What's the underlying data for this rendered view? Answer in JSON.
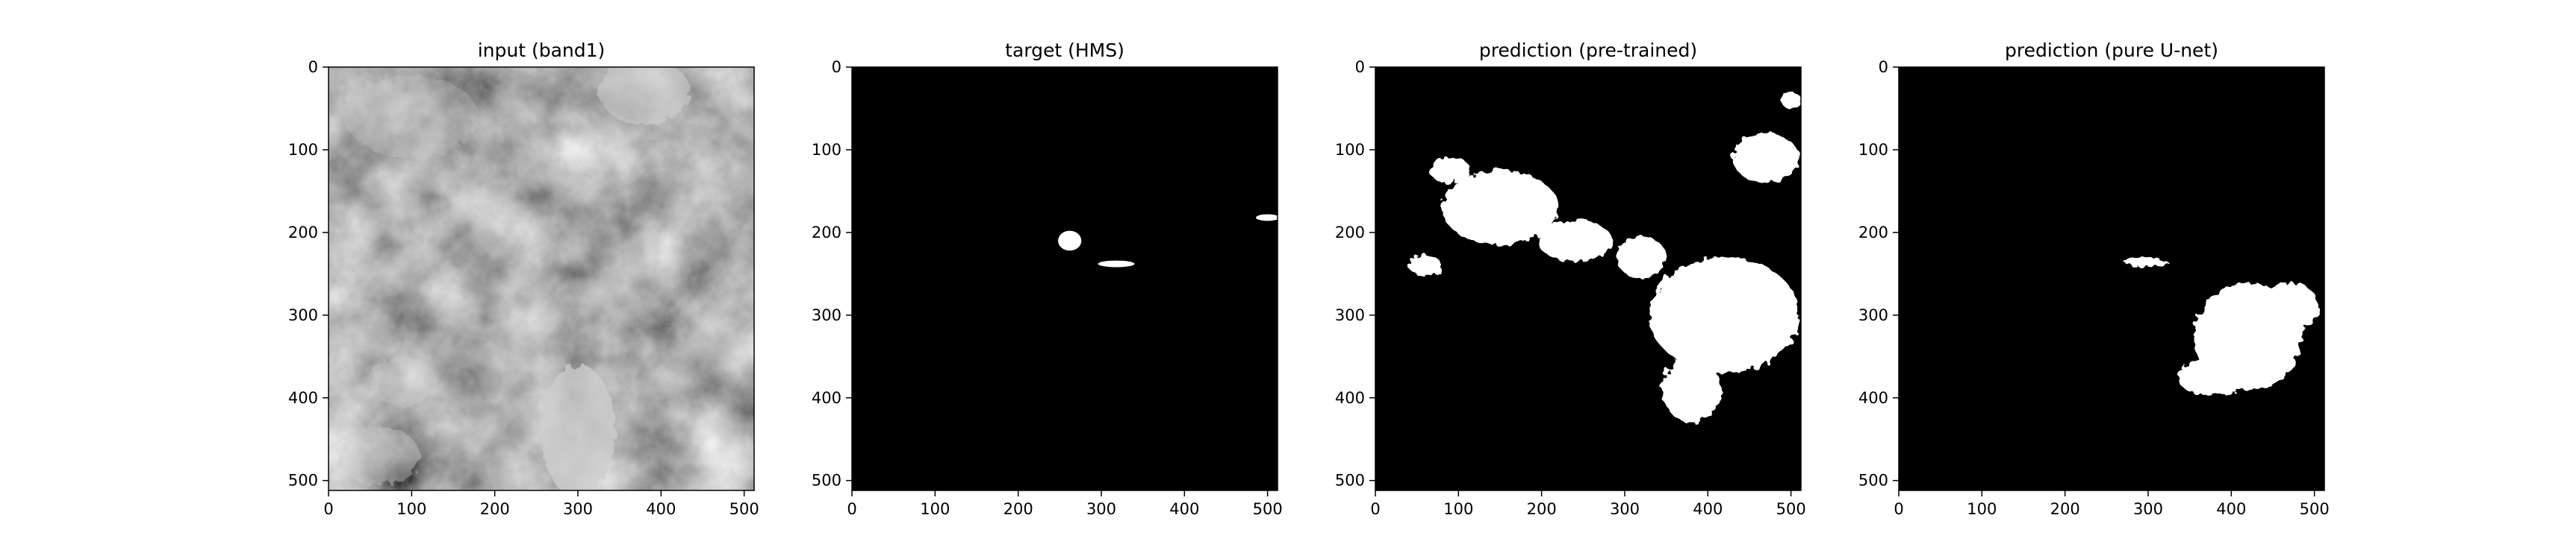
{
  "chart_data": [
    {
      "type": "heatmap",
      "title": "input (band1)",
      "colormap": "gray",
      "xlim": [
        0,
        512
      ],
      "ylim": [
        512,
        0
      ],
      "xticks": [
        0,
        100,
        200,
        300,
        400,
        500
      ],
      "yticks": [
        0,
        100,
        200,
        300,
        400,
        500
      ],
      "content": "grayscale satellite band image, cloud features"
    },
    {
      "type": "heatmap",
      "title": "target (HMS)",
      "colormap": "binary",
      "xlim": [
        0,
        512
      ],
      "ylim": [
        512,
        0
      ],
      "xticks": [
        0,
        100,
        200,
        300,
        400,
        500
      ],
      "yticks": [
        0,
        100,
        200,
        300,
        400,
        500
      ],
      "regions": [
        {
          "cx": 262,
          "cy": 210,
          "rx": 14,
          "ry": 12
        },
        {
          "cx": 318,
          "cy": 238,
          "rx": 22,
          "ry": 4
        },
        {
          "cx": 500,
          "cy": 182,
          "rx": 14,
          "ry": 4
        }
      ]
    },
    {
      "type": "heatmap",
      "title": "prediction (pre-trained)",
      "colormap": "binary",
      "xlim": [
        0,
        512
      ],
      "ylim": [
        512,
        0
      ],
      "xticks": [
        0,
        100,
        200,
        300,
        400,
        500
      ],
      "yticks": [
        0,
        100,
        200,
        300,
        400,
        500
      ],
      "regions": [
        {
          "cx": 150,
          "cy": 170,
          "rx": 70,
          "ry": 45
        },
        {
          "cx": 90,
          "cy": 125,
          "rx": 25,
          "ry": 15
        },
        {
          "cx": 240,
          "cy": 210,
          "rx": 45,
          "ry": 25
        },
        {
          "cx": 420,
          "cy": 300,
          "rx": 90,
          "ry": 70
        },
        {
          "cx": 380,
          "cy": 390,
          "rx": 35,
          "ry": 40
        },
        {
          "cx": 470,
          "cy": 110,
          "rx": 40,
          "ry": 30
        },
        {
          "cx": 500,
          "cy": 40,
          "rx": 12,
          "ry": 10
        },
        {
          "cx": 320,
          "cy": 230,
          "rx": 30,
          "ry": 25
        },
        {
          "cx": 60,
          "cy": 240,
          "rx": 20,
          "ry": 12
        }
      ]
    },
    {
      "type": "heatmap",
      "title": "prediction (pure U-net)",
      "colormap": "binary",
      "xlim": [
        0,
        512
      ],
      "ylim": [
        512,
        0
      ],
      "xticks": [
        0,
        100,
        200,
        300,
        400,
        500
      ],
      "yticks": [
        0,
        100,
        200,
        300,
        400,
        500
      ],
      "regions": [
        {
          "cx": 298,
          "cy": 236,
          "rx": 26,
          "ry": 5
        },
        {
          "cx": 420,
          "cy": 325,
          "rx": 65,
          "ry": 65
        },
        {
          "cx": 375,
          "cy": 375,
          "rx": 40,
          "ry": 22
        },
        {
          "cx": 470,
          "cy": 290,
          "rx": 35,
          "ry": 30
        }
      ]
    }
  ]
}
